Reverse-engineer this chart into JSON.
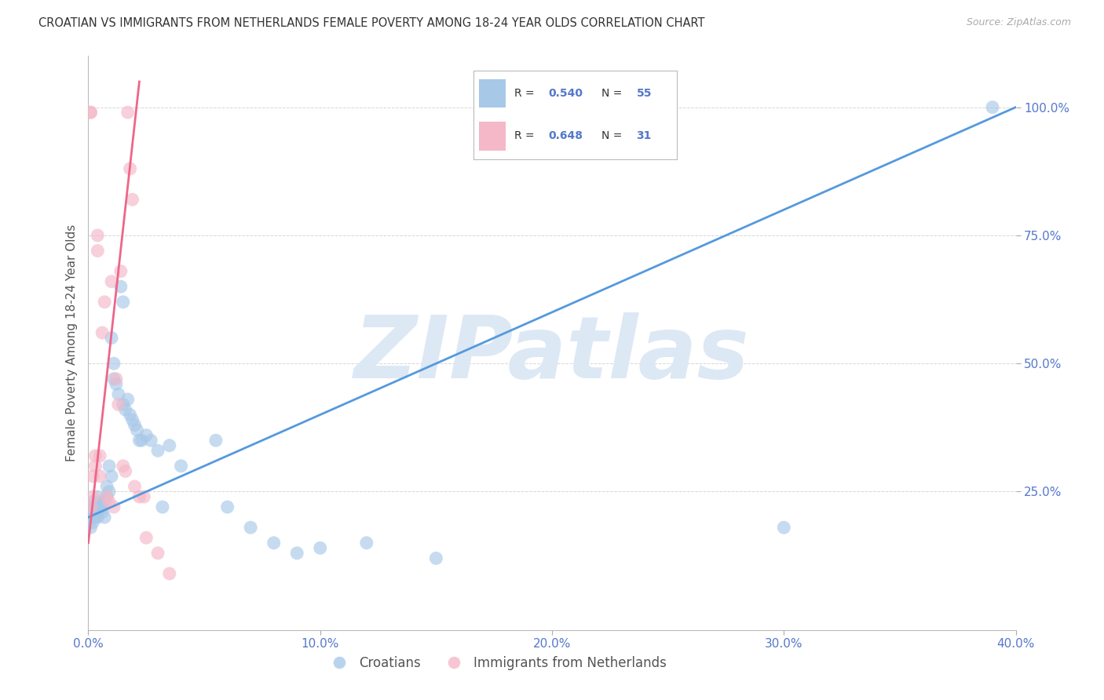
{
  "title": "CROATIAN VS IMMIGRANTS FROM NETHERLANDS FEMALE POVERTY AMONG 18-24 YEAR OLDS CORRELATION CHART",
  "source": "Source: ZipAtlas.com",
  "ylabel": "Female Poverty Among 18-24 Year Olds",
  "xlim": [
    0.0,
    0.4
  ],
  "ylim": [
    -0.02,
    1.1
  ],
  "x_ticks": [
    0.0,
    0.1,
    0.2,
    0.3,
    0.4
  ],
  "x_tick_labels": [
    "0.0%",
    "10.0%",
    "20.0%",
    "30.0%",
    "40.0%"
  ],
  "y_ticks": [
    0.25,
    0.5,
    0.75,
    1.0
  ],
  "y_tick_labels": [
    "25.0%",
    "50.0%",
    "75.0%",
    "100.0%"
  ],
  "blue_color": "#a8c8e8",
  "pink_color": "#f4b8c8",
  "blue_line_color": "#5599dd",
  "pink_line_color": "#ee6688",
  "watermark": "ZIPatlas",
  "watermark_color": "#dde8f5",
  "axis_color": "#5577cc",
  "croatians_label": "Croatians",
  "immigrants_label": "Immigrants from Netherlands",
  "blue_scatter_x": [
    0.001,
    0.001,
    0.001,
    0.002,
    0.002,
    0.002,
    0.003,
    0.003,
    0.003,
    0.004,
    0.004,
    0.004,
    0.005,
    0.005,
    0.006,
    0.006,
    0.007,
    0.007,
    0.008,
    0.008,
    0.009,
    0.009,
    0.01,
    0.01,
    0.011,
    0.011,
    0.012,
    0.013,
    0.014,
    0.015,
    0.015,
    0.016,
    0.017,
    0.018,
    0.019,
    0.02,
    0.021,
    0.022,
    0.023,
    0.025,
    0.027,
    0.03,
    0.032,
    0.035,
    0.04,
    0.055,
    0.06,
    0.07,
    0.08,
    0.09,
    0.1,
    0.12,
    0.15,
    0.3,
    0.39
  ],
  "blue_scatter_y": [
    0.22,
    0.2,
    0.18,
    0.21,
    0.19,
    0.23,
    0.2,
    0.22,
    0.21,
    0.24,
    0.21,
    0.2,
    0.23,
    0.22,
    0.21,
    0.22,
    0.2,
    0.23,
    0.24,
    0.26,
    0.25,
    0.3,
    0.28,
    0.55,
    0.5,
    0.47,
    0.46,
    0.44,
    0.65,
    0.62,
    0.42,
    0.41,
    0.43,
    0.4,
    0.39,
    0.38,
    0.37,
    0.35,
    0.35,
    0.36,
    0.35,
    0.33,
    0.22,
    0.34,
    0.3,
    0.35,
    0.22,
    0.18,
    0.15,
    0.13,
    0.14,
    0.15,
    0.12,
    0.18,
    1.0
  ],
  "pink_scatter_x": [
    0.001,
    0.001,
    0.001,
    0.002,
    0.002,
    0.003,
    0.003,
    0.004,
    0.004,
    0.005,
    0.005,
    0.006,
    0.007,
    0.008,
    0.009,
    0.01,
    0.011,
    0.012,
    0.013,
    0.014,
    0.015,
    0.016,
    0.017,
    0.018,
    0.019,
    0.02,
    0.022,
    0.024,
    0.025,
    0.03,
    0.035
  ],
  "pink_scatter_y": [
    0.22,
    0.99,
    0.99,
    0.28,
    0.24,
    0.3,
    0.32,
    0.72,
    0.75,
    0.28,
    0.32,
    0.56,
    0.62,
    0.24,
    0.23,
    0.66,
    0.22,
    0.47,
    0.42,
    0.68,
    0.3,
    0.29,
    0.99,
    0.88,
    0.82,
    0.26,
    0.24,
    0.24,
    0.16,
    0.13,
    0.09
  ],
  "blue_trend_x0": 0.0,
  "blue_trend_x1": 0.4,
  "blue_trend_y0": 0.2,
  "blue_trend_y1": 1.0,
  "pink_trend_x0": 0.0,
  "pink_trend_x1": 0.022,
  "pink_trend_y0": 0.15,
  "pink_trend_y1": 1.05
}
